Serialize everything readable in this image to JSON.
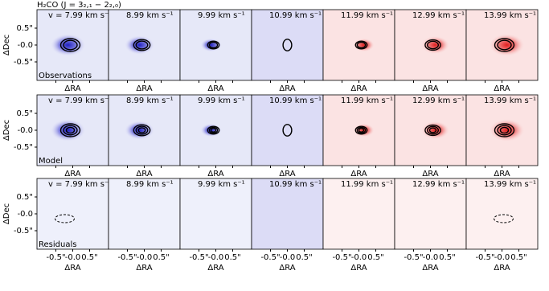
{
  "title": "H₂CO (J = 3₂,₁ − 2₂,₀)",
  "velocities": [
    "v = 7.99 km s⁻¹",
    "8.99 km s⁻¹",
    "9.99 km s⁻¹",
    "10.99 km s⁻¹",
    "11.99 km s⁻¹",
    "12.99 km s⁻¹",
    "13.99 km s⁻¹"
  ],
  "rows": [
    {
      "label": "Observations"
    },
    {
      "label": "Model"
    },
    {
      "label": "Residuals"
    }
  ],
  "y_axis_label": "ΔDec",
  "x_axis_label": "ΔRA",
  "y_ticks": [
    "0.5\"",
    "-0.0",
    "-0.5\""
  ],
  "x_ticks": [
    "-0.5\"",
    "-0.0",
    "0.5\""
  ]
}
